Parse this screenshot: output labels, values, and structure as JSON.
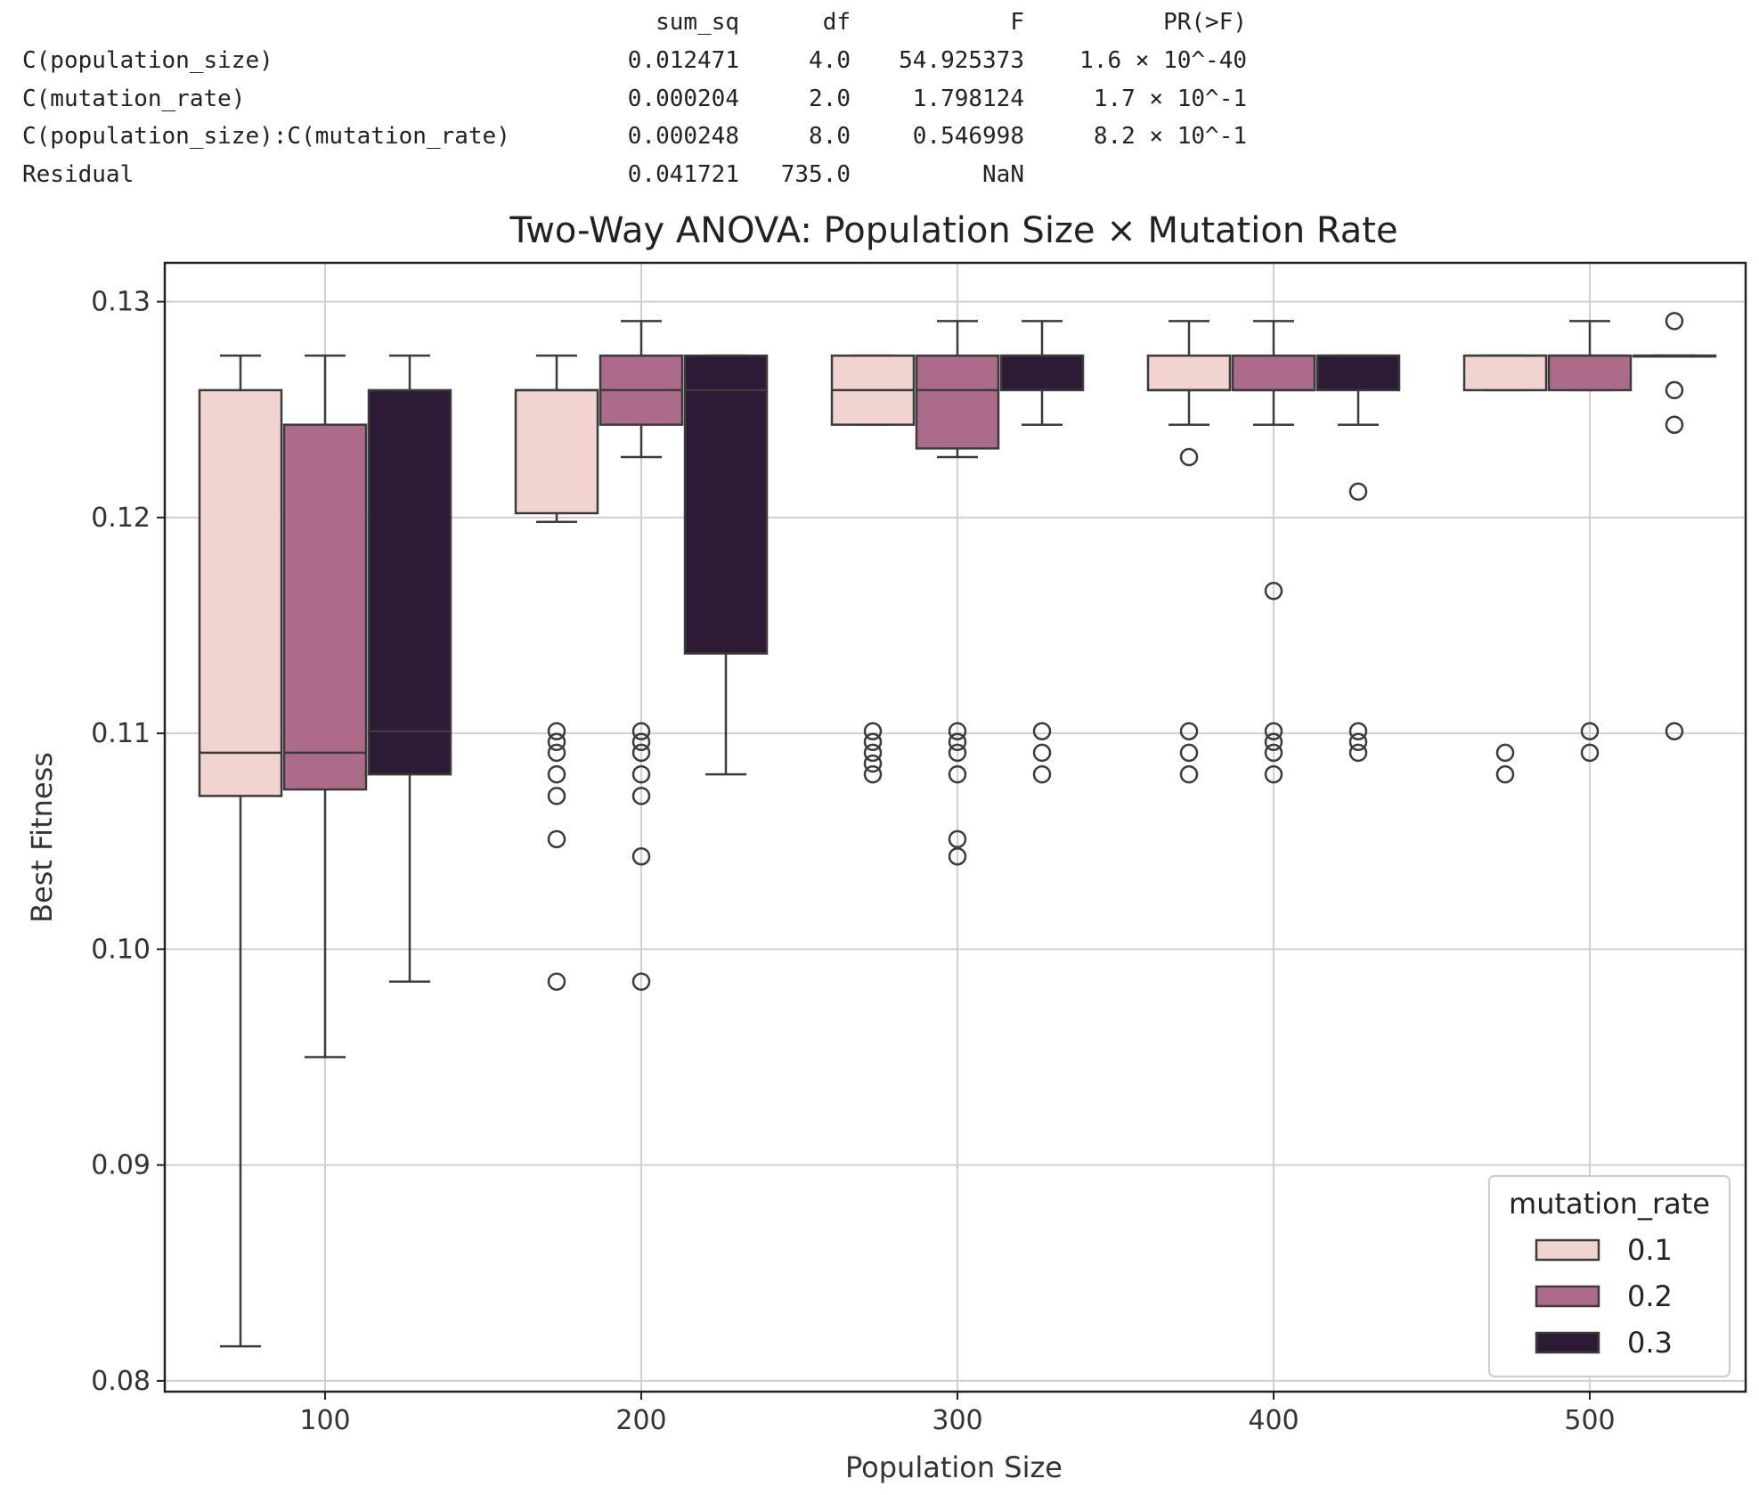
{
  "anova_table": {
    "columns": [
      "sum_sq",
      "df",
      "F",
      "PR(>F)"
    ],
    "rows": [
      {
        "label": "C(population_size)",
        "sum_sq": "0.012471",
        "df": "4.0",
        "F": "54.925373",
        "p": "1.6 × 10^-40"
      },
      {
        "label": "C(mutation_rate)",
        "sum_sq": "0.000204",
        "df": "2.0",
        "F": "1.798124",
        "p": "1.7 × 10^-1"
      },
      {
        "label": "C(population_size):C(mutation_rate)",
        "sum_sq": "0.000248",
        "df": "8.0",
        "F": "0.546998",
        "p": "8.2 × 10^-1"
      },
      {
        "label": "Residual",
        "sum_sq": "0.041721",
        "df": "735.0",
        "F": "NaN",
        "p": ""
      }
    ]
  },
  "chart_data": {
    "type": "box",
    "title": "Two-Way ANOVA: Population Size × Mutation Rate",
    "xlabel": "Population Size",
    "ylabel": "Best Fitness",
    "categories": [
      "100",
      "200",
      "300",
      "400",
      "500"
    ],
    "ylim": [
      0.0795,
      0.1318
    ],
    "yticks": [
      0.08,
      0.09,
      0.1,
      0.11,
      0.12,
      0.13
    ],
    "ytick_labels": [
      "0.08",
      "0.09",
      "0.10",
      "0.11",
      "0.12",
      "0.13"
    ],
    "grid": true,
    "legend": {
      "title": "mutation_rate",
      "position": "lower-right"
    },
    "series": [
      {
        "name": "0.1",
        "color": "#f1d3d0",
        "boxes": [
          {
            "whislo": 0.0816,
            "q1": 0.1071,
            "med": 0.1091,
            "q3": 0.1259,
            "whishi": 0.1275,
            "fliers": []
          },
          {
            "whislo": 0.1198,
            "q1": 0.1202,
            "med": 0.1259,
            "q3": 0.1259,
            "whishi": 0.1275,
            "fliers": [
              0.1101,
              0.1096,
              0.1091,
              0.1081,
              0.1071,
              0.1051,
              0.0985
            ]
          },
          {
            "whislo": 0.1243,
            "q1": 0.1243,
            "med": 0.1259,
            "q3": 0.1275,
            "whishi": 0.1275,
            "fliers": [
              0.1101,
              0.1096,
              0.1091,
              0.1086,
              0.1081
            ]
          },
          {
            "whislo": 0.1243,
            "q1": 0.1259,
            "med": 0.1259,
            "q3": 0.1275,
            "whishi": 0.1291,
            "fliers": [
              0.1228,
              0.1101,
              0.1091,
              0.1081
            ]
          },
          {
            "whislo": 0.1259,
            "q1": 0.1259,
            "med": 0.1275,
            "q3": 0.1275,
            "whishi": 0.1275,
            "fliers": [
              0.1091,
              0.1081
            ]
          }
        ]
      },
      {
        "name": "0.2",
        "color": "#ad6b8a",
        "boxes": [
          {
            "whislo": 0.095,
            "q1": 0.1074,
            "med": 0.1091,
            "q3": 0.1243,
            "whishi": 0.1275,
            "fliers": []
          },
          {
            "whislo": 0.1228,
            "q1": 0.1243,
            "med": 0.1259,
            "q3": 0.1275,
            "whishi": 0.1291,
            "fliers": [
              0.1101,
              0.1096,
              0.1091,
              0.1081,
              0.1071,
              0.1043,
              0.0985
            ]
          },
          {
            "whislo": 0.1228,
            "q1": 0.1232,
            "med": 0.1259,
            "q3": 0.1275,
            "whishi": 0.1291,
            "fliers": [
              0.1101,
              0.1096,
              0.1091,
              0.1081,
              0.1051,
              0.1043
            ]
          },
          {
            "whislo": 0.1243,
            "q1": 0.1259,
            "med": 0.1259,
            "q3": 0.1275,
            "whishi": 0.1291,
            "fliers": [
              0.1166,
              0.1101,
              0.1096,
              0.1091,
              0.1081
            ]
          },
          {
            "whislo": 0.1259,
            "q1": 0.1259,
            "med": 0.1275,
            "q3": 0.1275,
            "whishi": 0.1291,
            "fliers": [
              0.1101,
              0.1091
            ]
          }
        ]
      },
      {
        "name": "0.3",
        "color": "#2d1b36",
        "boxes": [
          {
            "whislo": 0.0985,
            "q1": 0.1081,
            "med": 0.1101,
            "q3": 0.1259,
            "whishi": 0.1275,
            "fliers": []
          },
          {
            "whislo": 0.1081,
            "q1": 0.1137,
            "med": 0.1259,
            "q3": 0.1275,
            "whishi": 0.1275,
            "fliers": []
          },
          {
            "whislo": 0.1243,
            "q1": 0.1259,
            "med": 0.1275,
            "q3": 0.1275,
            "whishi": 0.1291,
            "fliers": [
              0.1101,
              0.1091,
              0.1081
            ]
          },
          {
            "whislo": 0.1243,
            "q1": 0.1259,
            "med": 0.1275,
            "q3": 0.1275,
            "whishi": 0.1275,
            "fliers": [
              0.1212,
              0.1101,
              0.1096,
              0.1091
            ]
          },
          {
            "whislo": 0.1275,
            "q1": 0.1275,
            "med": 0.1275,
            "q3": 0.1275,
            "whishi": 0.1275,
            "fliers": [
              0.1291,
              0.1259,
              0.1243,
              0.1101
            ]
          }
        ]
      }
    ]
  }
}
